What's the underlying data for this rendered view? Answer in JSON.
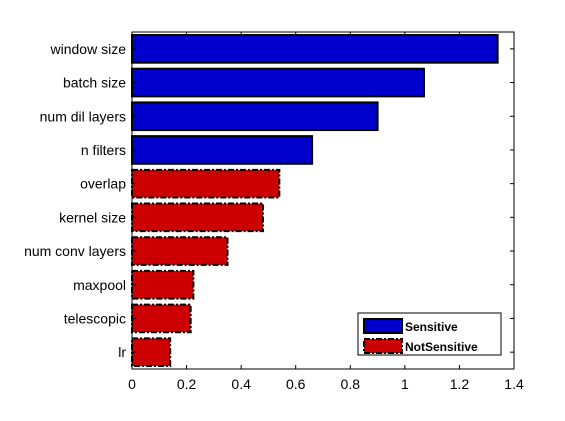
{
  "chart_data": {
    "type": "bar",
    "orientation": "horizontal",
    "categories": [
      "window size",
      "batch size",
      "num dil layers",
      "n filters",
      "overlap",
      "kernel size",
      "num conv layers",
      "maxpool",
      "telescopic",
      "lr"
    ],
    "values": [
      1.34,
      1.07,
      0.9,
      0.66,
      0.54,
      0.48,
      0.35,
      0.225,
      0.215,
      0.14
    ],
    "groups": [
      "Sensitive",
      "Sensitive",
      "Sensitive",
      "Sensitive",
      "NotSensitive",
      "NotSensitive",
      "NotSensitive",
      "NotSensitive",
      "NotSensitive",
      "NotSensitive"
    ],
    "xlim": [
      0,
      1.4
    ],
    "xticks": [
      "0",
      "0.2",
      "0.4",
      "0.6",
      "0.8",
      "1",
      "1.2",
      "1.4"
    ],
    "grid": false,
    "legend": {
      "position": "bottom-right",
      "entries": [
        {
          "name": "Sensitive",
          "color": "#0000cc",
          "style": "solid"
        },
        {
          "name": "NotSensitive",
          "color": "#cc0000",
          "style": "dash-dot"
        }
      ]
    },
    "title": "",
    "xlabel": "",
    "ylabel": ""
  }
}
